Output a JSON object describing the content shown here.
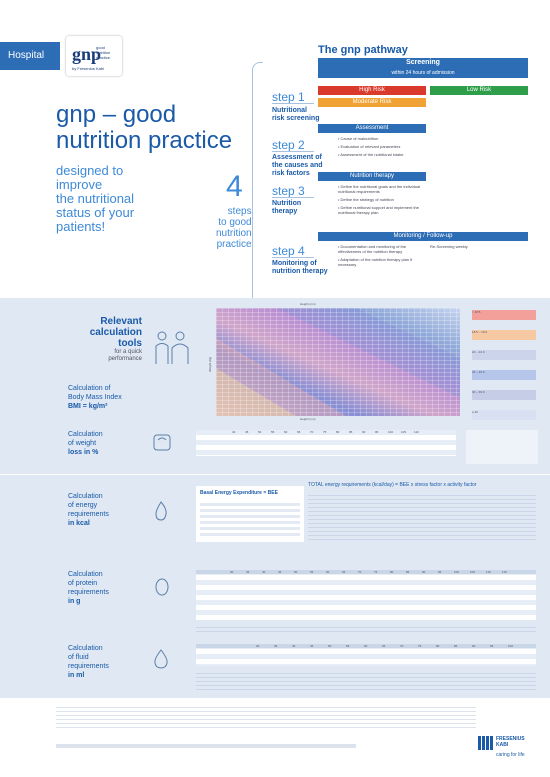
{
  "brand": {
    "hospital_label": "Hospital",
    "logo_text": "gnp",
    "logo_tagline": "good nutrition practice",
    "logo_by": "by Fresenius Kabi",
    "footer_brand": "FRESENIUS KABI",
    "footer_tagline": "caring for life"
  },
  "hero": {
    "title_line1": "gnp – good",
    "title_line2": "nutrition practice",
    "subtitle_line1": "designed to",
    "subtitle_line2": "improve",
    "subtitle_line3": "the nutritional",
    "subtitle_line4": "status of your",
    "subtitle_line5": "patients!",
    "four_number": "4",
    "steps_word1": "steps",
    "steps_word2": "to good",
    "steps_word3": "nutrition",
    "steps_word4": "practice"
  },
  "pathway": {
    "title": "The gnp pathway",
    "screening_bar": "Screening",
    "screening_sub": "within 24 hours of admission",
    "high_risk": "High Risk",
    "low_risk": "Low Risk",
    "moderate_risk": "Moderate Risk",
    "assessment_bar": "Assessment",
    "therapy_bar": "Nutrition therapy",
    "monitoring_bar": "Monitoring / Follow-up",
    "steps": [
      {
        "label": "step 1",
        "desc1": "Nutritional",
        "desc2": "risk screening",
        "desc3": ""
      },
      {
        "label": "step 2",
        "desc1": "Assessment of",
        "desc2": "the causes and",
        "desc3": "risk factors"
      },
      {
        "label": "step 3",
        "desc1": "Nutrition",
        "desc2": "therapy",
        "desc3": ""
      },
      {
        "label": "step 4",
        "desc1": "Monitoring of",
        "desc2": "nutrition therapy",
        "desc3": ""
      }
    ],
    "assessment_bullets": [
      "Cause of malnutrition",
      "Evaluation of relevant parameters",
      "Assessment of the nutritional intake"
    ],
    "therapy_bullets": [
      "Define the nutritional goals and the individual nutritional requirements",
      "Define the strategy of nutrition",
      "Define nutritional support and implement the nutritional therapy plan"
    ],
    "monitoring_bullets": [
      "Documentation and monitoring of the effectiveness of the nutrition therapy",
      "Adaptation of the nutrition therapy plan if necessary"
    ],
    "monitoring_right": "Re-Screening weekly"
  },
  "calc": {
    "title1": "Relevant",
    "title2": "calculation",
    "title3": "tools",
    "sub1": "for a quick",
    "sub2": "performance",
    "bmi_label1": "Calculation of",
    "bmi_label2": "Body Mass Index",
    "bmi_label3": "BMI = kg/m²",
    "weight_loss_label1": "Calculation",
    "weight_loss_label2": "of weight",
    "weight_loss_label3": "loss in %",
    "energy_label1": "Calculation",
    "energy_label2": "of energy",
    "energy_label3": "requirements",
    "energy_label4": "in kcal",
    "protein_label1": "Calculation",
    "protein_label2": "of protein",
    "protein_label3": "requirements",
    "protein_label4": "in g",
    "fluid_label1": "Calculation",
    "fluid_label2": "of fluid",
    "fluid_label3": "requirements",
    "fluid_label4": "in ml",
    "height_axis": "Height (cm)",
    "weight_axis": "Weight (kg)",
    "bee_title": "Basal Energy Expenditure = BEE",
    "tee_title": "TOTAL energy requirements (kcal/day) = BEE x stress factor x activity factor",
    "bmi_legend": [
      "< 18.5",
      "18.5 – 19.9",
      "20 – 24.9",
      "25 – 29.9",
      "30 – 39.9",
      "≥ 40"
    ]
  },
  "weight_loss_table": {
    "headers": [
      "40",
      "45",
      "50",
      "55",
      "60",
      "65",
      "70",
      "75",
      "80",
      "85",
      "90",
      "95",
      "100",
      "105",
      "110"
    ]
  },
  "protein_table": {
    "headers": [
      "30",
      "35",
      "40",
      "45",
      "50",
      "55",
      "60",
      "65",
      "70",
      "75",
      "80",
      "85",
      "90",
      "95",
      "100",
      "105",
      "110",
      "115",
      "120"
    ]
  },
  "fluid_table": {
    "headers": [
      "30",
      "35",
      "40",
      "45",
      "50",
      "55",
      "60",
      "65",
      "70",
      "75",
      "80",
      "85",
      "90",
      "95",
      "100"
    ]
  },
  "colors": {
    "brand_blue": "#1a5aa8",
    "light_blue": "#3d8ad8",
    "high_risk": "#d93a2b",
    "moderate_risk": "#f0a234",
    "low_risk": "#2f9e4a",
    "bar_blue": "#2d6db5"
  }
}
